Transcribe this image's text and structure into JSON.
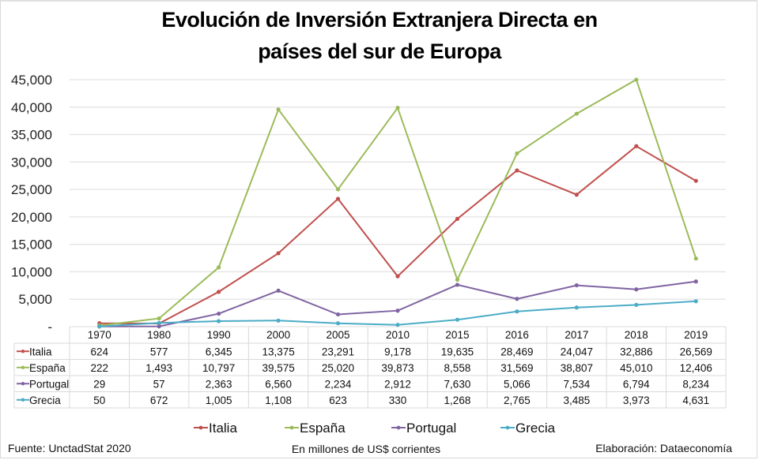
{
  "chart_data": {
    "type": "line",
    "title": "Evolución de Inversión Extranjera Directa en países del sur de Europa",
    "title_lines": [
      "Evolución de Inversión Extranjera Directa en",
      "países del sur de Europa"
    ],
    "xlabel": "",
    "ylabel": "",
    "ylim": [
      0,
      45000
    ],
    "yticks": [
      0,
      5000,
      10000,
      15000,
      20000,
      25000,
      30000,
      35000,
      40000,
      45000
    ],
    "ytick_labels": [
      "-",
      "5,000",
      "10,000",
      "15,000",
      "20,000",
      "25,000",
      "30,000",
      "35,000",
      "40,000",
      "45,000"
    ],
    "grid": true,
    "categories": [
      "1970",
      "1980",
      "1990",
      "2000",
      "2005",
      "2010",
      "2015",
      "2016",
      "2017",
      "2018",
      "2019"
    ],
    "series": [
      {
        "name": "Italia",
        "color": "#c0504d",
        "values": [
          624,
          577,
          6345,
          13375,
          23291,
          9178,
          19635,
          28469,
          24047,
          32886,
          26569
        ],
        "labels": [
          "624",
          "577",
          "6,345",
          "13,375",
          "23,291",
          "9,178",
          "19,635",
          "28,469",
          "24,047",
          "32,886",
          "26,569"
        ]
      },
      {
        "name": "España",
        "color": "#9bbb59",
        "values": [
          222,
          1493,
          10797,
          39575,
          25020,
          39873,
          8558,
          31569,
          38807,
          45010,
          12406
        ],
        "labels": [
          "222",
          "1,493",
          "10,797",
          "39,575",
          "25,020",
          "39,873",
          "8,558",
          "31,569",
          "38,807",
          "45,010",
          "12,406"
        ]
      },
      {
        "name": "Portugal",
        "color": "#8064a2",
        "values": [
          29,
          57,
          2363,
          6560,
          2234,
          2912,
          7630,
          5066,
          7534,
          6794,
          8234
        ],
        "labels": [
          "29",
          "57",
          "2,363",
          "6,560",
          "2,234",
          "2,912",
          "7,630",
          "5,066",
          "7,534",
          "6,794",
          "8,234"
        ]
      },
      {
        "name": "Grecia",
        "color": "#4bacc6",
        "values": [
          50,
          672,
          1005,
          1108,
          623,
          330,
          1268,
          2765,
          3485,
          3973,
          4631
        ],
        "labels": [
          "50",
          "672",
          "1,005",
          "1,108",
          "623",
          "330",
          "1,268",
          "2,765",
          "3,485",
          "3,973",
          "4,631"
        ]
      }
    ],
    "legend_position": "bottom",
    "data_table": true
  },
  "footer": {
    "source": "Fuente: UnctadStat 2020",
    "units": "En millones de US$ corrientes",
    "credit": "Elaboración: Dataeconomía"
  }
}
